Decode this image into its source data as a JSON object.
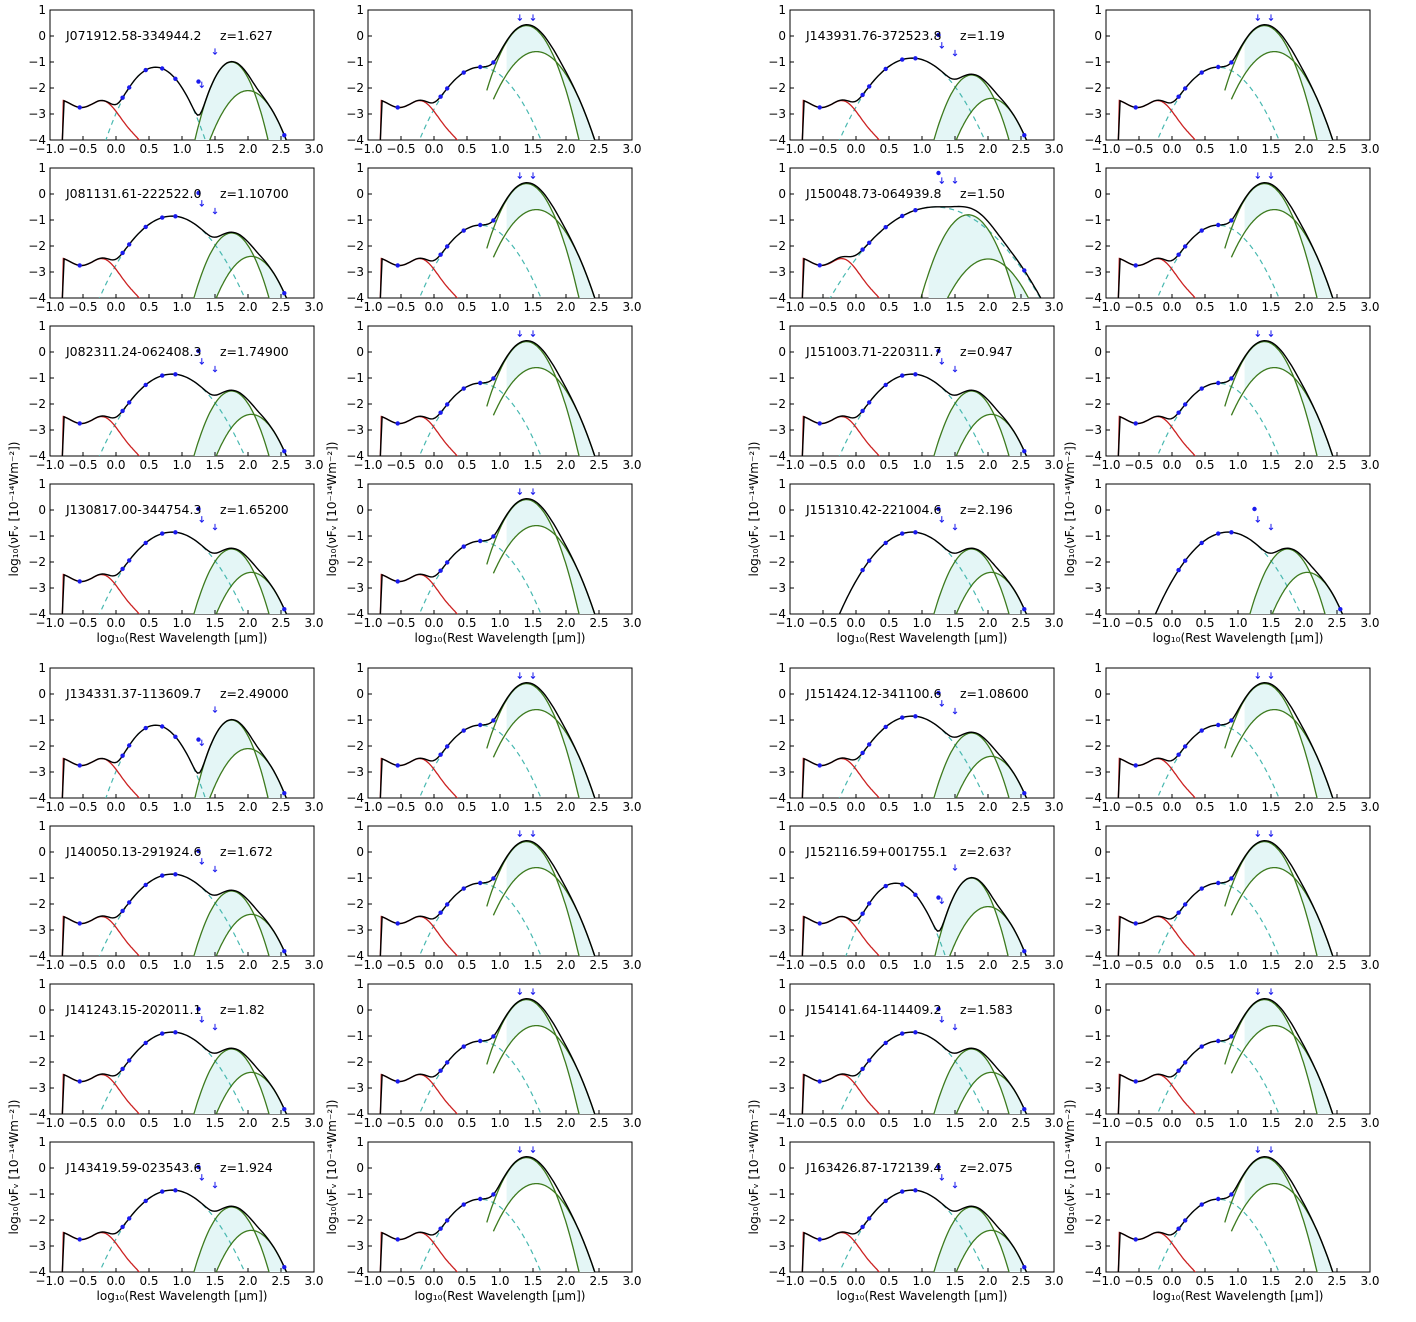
{
  "colors": {
    "total": "#000000",
    "stellar": "#cc2222",
    "torus": "#48b8b0",
    "dust": "#3d7a1e",
    "fill": "#e4f6f6",
    "points": "#1a1aee"
  },
  "axis_labels": {
    "xlabel": "log₁₀(Rest Wavelength [μm])",
    "ylabel": "log₁₀(νFᵥ [10⁻¹⁴Wm⁻²])"
  },
  "chart_data": [
    {
      "type": "line",
      "title": "J071912.58-334944.2",
      "z": "z=1.627",
      "xlim": [
        -1.0,
        3.0
      ],
      "ylim": [
        -4,
        1
      ],
      "xticks": [
        -1.0,
        -0.5,
        0.0,
        0.5,
        1.0,
        1.5,
        2.0,
        2.5,
        3.0
      ],
      "yticks": [
        -4,
        -3,
        -2,
        -1,
        0,
        1
      ],
      "variant": "lowz"
    },
    {
      "type": "line",
      "title": "",
      "z": "",
      "xlim": [
        -1.0,
        3.0
      ],
      "ylim": [
        -4,
        1
      ],
      "xticks": [
        -1.0,
        -0.5,
        0.0,
        0.5,
        1.0,
        1.5,
        2.0,
        2.5,
        3.0
      ],
      "yticks": [
        -4,
        -3,
        -2,
        -1,
        0,
        1
      ],
      "variant": "bigdust"
    },
    {
      "type": "line",
      "title": "J143931.76-372523.8",
      "z": "z=1.19",
      "xlim": [
        -1.0,
        3.0
      ],
      "ylim": [
        -4,
        1
      ],
      "xticks": [
        -1.0,
        -0.5,
        0.0,
        0.5,
        1.0,
        1.5,
        2.0,
        2.5,
        3.0
      ],
      "yticks": [
        -4,
        -3,
        -2,
        -1,
        0,
        1
      ],
      "variant": "std"
    },
    {
      "type": "line",
      "title": "",
      "z": "",
      "xlim": [
        -1.0,
        3.0
      ],
      "ylim": [
        -4,
        1
      ],
      "xticks": [
        -1.0,
        -0.5,
        0.0,
        0.5,
        1.0,
        1.5,
        2.0,
        2.5,
        3.0
      ],
      "yticks": [
        -4,
        -3,
        -2,
        -1,
        0,
        1
      ],
      "variant": "bigdust"
    },
    {
      "type": "line",
      "title": "J081131.61-222522.0",
      "z": "z=1.10700",
      "xlim": [
        -1.0,
        3.0
      ],
      "ylim": [
        -4,
        1
      ],
      "xticks": [
        -1.0,
        -0.5,
        0.0,
        0.5,
        1.0,
        1.5,
        2.0,
        2.5,
        3.0
      ],
      "yticks": [
        -4,
        -3,
        -2,
        -1,
        0,
        1
      ],
      "variant": "std"
    },
    {
      "type": "line",
      "title": "",
      "z": "",
      "xlim": [
        -1.0,
        3.0
      ],
      "ylim": [
        -4,
        1
      ],
      "xticks": [
        -1.0,
        -0.5,
        0.0,
        0.5,
        1.0,
        1.5,
        2.0,
        2.5,
        3.0
      ],
      "yticks": [
        -4,
        -3,
        -2,
        -1,
        0,
        1
      ],
      "variant": "bigdust"
    },
    {
      "type": "line",
      "title": "J150048.73-064939.8",
      "z": "z=1.50",
      "xlim": [
        -1.0,
        3.0
      ],
      "ylim": [
        -4,
        1
      ],
      "xticks": [
        -1.0,
        -0.5,
        0.0,
        0.5,
        1.0,
        1.5,
        2.0,
        2.5,
        3.0
      ],
      "yticks": [
        -4,
        -3,
        -2,
        -1,
        0,
        1
      ],
      "variant": "broad"
    },
    {
      "type": "line",
      "title": "",
      "z": "",
      "xlim": [
        -1.0,
        3.0
      ],
      "ylim": [
        -4,
        1
      ],
      "xticks": [
        -1.0,
        -0.5,
        0.0,
        0.5,
        1.0,
        1.5,
        2.0,
        2.5,
        3.0
      ],
      "yticks": [
        -4,
        -3,
        -2,
        -1,
        0,
        1
      ],
      "variant": "bigdust"
    },
    {
      "type": "line",
      "title": "J082311.24-062408.3",
      "z": "z=1.74900",
      "xlim": [
        -1.0,
        3.0
      ],
      "ylim": [
        -4,
        1
      ],
      "xticks": [
        -1.0,
        -0.5,
        0.0,
        0.5,
        1.0,
        1.5,
        2.0,
        2.5,
        3.0
      ],
      "yticks": [
        -4,
        -3,
        -2,
        -1,
        0,
        1
      ],
      "variant": "std"
    },
    {
      "type": "line",
      "title": "",
      "z": "",
      "xlim": [
        -1.0,
        3.0
      ],
      "ylim": [
        -4,
        1
      ],
      "xticks": [
        -1.0,
        -0.5,
        0.0,
        0.5,
        1.0,
        1.5,
        2.0,
        2.5,
        3.0
      ],
      "yticks": [
        -4,
        -3,
        -2,
        -1,
        0,
        1
      ],
      "variant": "bigdust"
    },
    {
      "type": "line",
      "title": "J151003.71-220311.7",
      "z": "z=0.947",
      "xlim": [
        -1.0,
        3.0
      ],
      "ylim": [
        -4,
        1
      ],
      "xticks": [
        -1.0,
        -0.5,
        0.0,
        0.5,
        1.0,
        1.5,
        2.0,
        2.5,
        3.0
      ],
      "yticks": [
        -4,
        -3,
        -2,
        -1,
        0,
        1
      ],
      "variant": "std"
    },
    {
      "type": "line",
      "title": "",
      "z": "",
      "xlim": [
        -1.0,
        3.0
      ],
      "ylim": [
        -4,
        1
      ],
      "xticks": [
        -1.0,
        -0.5,
        0.0,
        0.5,
        1.0,
        1.5,
        2.0,
        2.5,
        3.0
      ],
      "yticks": [
        -4,
        -3,
        -2,
        -1,
        0,
        1
      ],
      "variant": "bigdust"
    },
    {
      "type": "line",
      "title": "J130817.00-344754.3",
      "z": "z=1.65200",
      "xlim": [
        -1.0,
        3.0
      ],
      "ylim": [
        -4,
        1
      ],
      "xticks": [
        -1.0,
        -0.5,
        0.0,
        0.5,
        1.0,
        1.5,
        2.0,
        2.5,
        3.0
      ],
      "yticks": [
        -4,
        -3,
        -2,
        -1,
        0,
        1
      ],
      "variant": "std"
    },
    {
      "type": "line",
      "title": "",
      "z": "",
      "xlim": [
        -1.0,
        3.0
      ],
      "ylim": [
        -4,
        1
      ],
      "xticks": [
        -1.0,
        -0.5,
        0.0,
        0.5,
        1.0,
        1.5,
        2.0,
        2.5,
        3.0
      ],
      "yticks": [
        -4,
        -3,
        -2,
        -1,
        0,
        1
      ],
      "variant": "bigdust"
    },
    {
      "type": "line",
      "title": "J151310.42-221004.6",
      "z": "z=2.196",
      "xlim": [
        -1.0,
        3.0
      ],
      "ylim": [
        -4,
        1
      ],
      "xticks": [
        -1.0,
        -0.5,
        0.0,
        0.5,
        1.0,
        1.5,
        2.0,
        2.5,
        3.0
      ],
      "yticks": [
        -4,
        -3,
        -2,
        -1,
        0,
        1
      ],
      "variant": "nostar"
    },
    {
      "type": "line",
      "title": "",
      "z": "",
      "xlim": [
        -1.0,
        3.0
      ],
      "ylim": [
        -4,
        1
      ],
      "xticks": [
        -1.0,
        -0.5,
        0.0,
        0.5,
        1.0,
        1.5,
        2.0,
        2.5,
        3.0
      ],
      "yticks": [
        -4,
        -3,
        -2,
        -1,
        0,
        1
      ],
      "variant": "nostar"
    },
    {
      "type": "line",
      "title": "J134331.37-113609.7",
      "z": "z=2.49000",
      "xlim": [
        -1.0,
        3.0
      ],
      "ylim": [
        -4,
        1
      ],
      "xticks": [
        -1.0,
        -0.5,
        0.0,
        0.5,
        1.0,
        1.5,
        2.0,
        2.5,
        3.0
      ],
      "yticks": [
        -4,
        -3,
        -2,
        -1,
        0,
        1
      ],
      "variant": "lowz"
    },
    {
      "type": "line",
      "title": "",
      "z": "",
      "xlim": [
        -1.0,
        3.0
      ],
      "ylim": [
        -4,
        1
      ],
      "xticks": [
        -1.0,
        -0.5,
        0.0,
        0.5,
        1.0,
        1.5,
        2.0,
        2.5,
        3.0
      ],
      "yticks": [
        -4,
        -3,
        -2,
        -1,
        0,
        1
      ],
      "variant": "bigdust"
    },
    {
      "type": "line",
      "title": "J151424.12-341100.6",
      "z": "z=1.08600",
      "xlim": [
        -1.0,
        3.0
      ],
      "ylim": [
        -4,
        1
      ],
      "xticks": [
        -1.0,
        -0.5,
        0.0,
        0.5,
        1.0,
        1.5,
        2.0,
        2.5,
        3.0
      ],
      "yticks": [
        -4,
        -3,
        -2,
        -1,
        0,
        1
      ],
      "variant": "std"
    },
    {
      "type": "line",
      "title": "",
      "z": "",
      "xlim": [
        -1.0,
        3.0
      ],
      "ylim": [
        -4,
        1
      ],
      "xticks": [
        -1.0,
        -0.5,
        0.0,
        0.5,
        1.0,
        1.5,
        2.0,
        2.5,
        3.0
      ],
      "yticks": [
        -4,
        -3,
        -2,
        -1,
        0,
        1
      ],
      "variant": "bigdust"
    },
    {
      "type": "line",
      "title": "J140050.13-291924.6",
      "z": "z=1.672",
      "xlim": [
        -1.0,
        3.0
      ],
      "ylim": [
        -4,
        1
      ],
      "xticks": [
        -1.0,
        -0.5,
        0.0,
        0.5,
        1.0,
        1.5,
        2.0,
        2.5,
        3.0
      ],
      "yticks": [
        -4,
        -3,
        -2,
        -1,
        0,
        1
      ],
      "variant": "std"
    },
    {
      "type": "line",
      "title": "",
      "z": "",
      "xlim": [
        -1.0,
        3.0
      ],
      "ylim": [
        -4,
        1
      ],
      "xticks": [
        -1.0,
        -0.5,
        0.0,
        0.5,
        1.0,
        1.5,
        2.0,
        2.5,
        3.0
      ],
      "yticks": [
        -4,
        -3,
        -2,
        -1,
        0,
        1
      ],
      "variant": "bigdust"
    },
    {
      "type": "line",
      "title": "J152116.59+001755.1",
      "z": "z=2.63?",
      "xlim": [
        -1.0,
        3.0
      ],
      "ylim": [
        -4,
        1
      ],
      "xticks": [
        -1.0,
        -0.5,
        0.0,
        0.5,
        1.0,
        1.5,
        2.0,
        2.5,
        3.0
      ],
      "yticks": [
        -4,
        -3,
        -2,
        -1,
        0,
        1
      ],
      "variant": "lowz"
    },
    {
      "type": "line",
      "title": "",
      "z": "",
      "xlim": [
        -1.0,
        3.0
      ],
      "ylim": [
        -4,
        1
      ],
      "xticks": [
        -1.0,
        -0.5,
        0.0,
        0.5,
        1.0,
        1.5,
        2.0,
        2.5,
        3.0
      ],
      "yticks": [
        -4,
        -3,
        -2,
        -1,
        0,
        1
      ],
      "variant": "bigdust"
    },
    {
      "type": "line",
      "title": "J141243.15-202011.1",
      "z": "z=1.82",
      "xlim": [
        -1.0,
        3.0
      ],
      "ylim": [
        -4,
        1
      ],
      "xticks": [
        -1.0,
        -0.5,
        0.0,
        0.5,
        1.0,
        1.5,
        2.0,
        2.5,
        3.0
      ],
      "yticks": [
        -4,
        -3,
        -2,
        -1,
        0,
        1
      ],
      "variant": "std"
    },
    {
      "type": "line",
      "title": "",
      "z": "",
      "xlim": [
        -1.0,
        3.0
      ],
      "ylim": [
        -4,
        1
      ],
      "xticks": [
        -1.0,
        -0.5,
        0.0,
        0.5,
        1.0,
        1.5,
        2.0,
        2.5,
        3.0
      ],
      "yticks": [
        -4,
        -3,
        -2,
        -1,
        0,
        1
      ],
      "variant": "bigdust"
    },
    {
      "type": "line",
      "title": "J154141.64-114409.2",
      "z": "z=1.583",
      "xlim": [
        -1.0,
        3.0
      ],
      "ylim": [
        -4,
        1
      ],
      "xticks": [
        -1.0,
        -0.5,
        0.0,
        0.5,
        1.0,
        1.5,
        2.0,
        2.5,
        3.0
      ],
      "yticks": [
        -4,
        -3,
        -2,
        -1,
        0,
        1
      ],
      "variant": "std"
    },
    {
      "type": "line",
      "title": "",
      "z": "",
      "xlim": [
        -1.0,
        3.0
      ],
      "ylim": [
        -4,
        1
      ],
      "xticks": [
        -1.0,
        -0.5,
        0.0,
        0.5,
        1.0,
        1.5,
        2.0,
        2.5,
        3.0
      ],
      "yticks": [
        -4,
        -3,
        -2,
        -1,
        0,
        1
      ],
      "variant": "bigdust"
    },
    {
      "type": "line",
      "title": "J143419.59-023543.6",
      "z": "z=1.924",
      "xlim": [
        -1.0,
        3.0
      ],
      "ylim": [
        -4,
        1
      ],
      "xticks": [
        -1.0,
        -0.5,
        0.0,
        0.5,
        1.0,
        1.5,
        2.0,
        2.5,
        3.0
      ],
      "yticks": [
        -4,
        -3,
        -2,
        -1,
        0,
        1
      ],
      "variant": "std"
    },
    {
      "type": "line",
      "title": "",
      "z": "",
      "xlim": [
        -1.0,
        3.0
      ],
      "ylim": [
        -4,
        1
      ],
      "xticks": [
        -1.0,
        -0.5,
        0.0,
        0.5,
        1.0,
        1.5,
        2.0,
        2.5,
        3.0
      ],
      "yticks": [
        -4,
        -3,
        -2,
        -1,
        0,
        1
      ],
      "variant": "bigdust"
    },
    {
      "type": "line",
      "title": "J163426.87-172139.4",
      "z": "z=2.075",
      "xlim": [
        -1.0,
        3.0
      ],
      "ylim": [
        -4,
        1
      ],
      "xticks": [
        -1.0,
        -0.5,
        0.0,
        0.5,
        1.0,
        1.5,
        2.0,
        2.5,
        3.0
      ],
      "yticks": [
        -4,
        -3,
        -2,
        -1,
        0,
        1
      ],
      "variant": "std"
    },
    {
      "type": "line",
      "title": "",
      "z": "",
      "xlim": [
        -1.0,
        3.0
      ],
      "ylim": [
        -4,
        1
      ],
      "xticks": [
        -1.0,
        -0.5,
        0.0,
        0.5,
        1.0,
        1.5,
        2.0,
        2.5,
        3.0
      ],
      "yticks": [
        -4,
        -3,
        -2,
        -1,
        0,
        1
      ],
      "variant": "bigdust"
    }
  ]
}
